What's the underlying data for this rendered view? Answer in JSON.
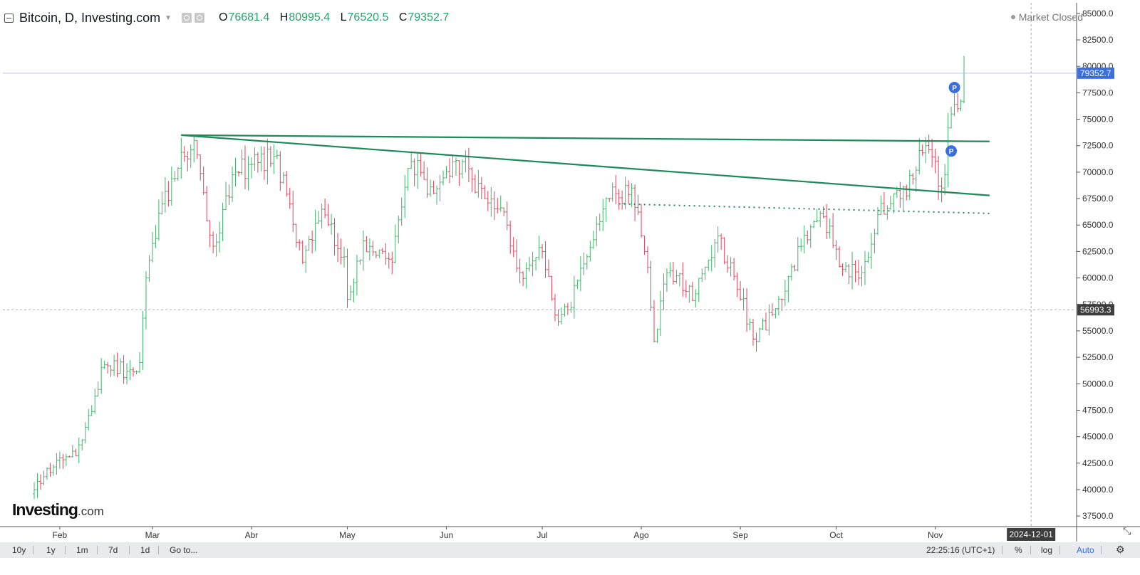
{
  "header": {
    "title": "Bitcoin, D, Investing.com",
    "ohlc": [
      {
        "key": "O",
        "value": "76681.4"
      },
      {
        "key": "H",
        "value": "80995.4"
      },
      {
        "key": "L",
        "value": "76520.5"
      },
      {
        "key": "C",
        "value": "79352.7"
      }
    ],
    "status": "Market Closed"
  },
  "logo": {
    "brand": "Investing",
    "suffix": ".com"
  },
  "toolbar": {
    "ranges": [
      "10y",
      "1y",
      "1m",
      "7d",
      "1d"
    ],
    "goto": "Go to...",
    "time": "22:25:16 (UTC+1)",
    "percent": "%",
    "log": "log",
    "auto": "Auto"
  },
  "colors": {
    "up": "#3fb46a",
    "down": "#e0435a",
    "trend": "#1d8a5b",
    "accent": "#3b6fe0",
    "price_label": "#3b6fe0"
  },
  "chart_data": {
    "type": "ohlc",
    "timeframe": "D",
    "ylim": [
      36500,
      86000
    ],
    "y_ticks": [
      37500,
      40000,
      42500,
      45000,
      47500,
      50000,
      52500,
      55000,
      57500,
      60000,
      62500,
      65000,
      67500,
      70000,
      72500,
      75000,
      77500,
      80000,
      82500,
      85000
    ],
    "x_labels": [
      {
        "label": "Feb",
        "date": "2024-02-01"
      },
      {
        "label": "Mar",
        "date": "2024-03-01"
      },
      {
        "label": "Abr",
        "date": "2024-04-01"
      },
      {
        "label": "May",
        "date": "2024-05-01"
      },
      {
        "label": "Jun",
        "date": "2024-06-01"
      },
      {
        "label": "Jul",
        "date": "2024-07-01"
      },
      {
        "label": "Ago",
        "date": "2024-08-01"
      },
      {
        "label": "Sep",
        "date": "2024-09-01"
      },
      {
        "label": "Oct",
        "date": "2024-10-01"
      },
      {
        "label": "Nov",
        "date": "2024-11-01"
      }
    ],
    "current_price": "79352.7",
    "crosshair_price": "56993.3",
    "crosshair_date": "2024-12-01",
    "price_series": [
      {
        "date": "2024-01-24",
        "close": 40000
      },
      {
        "date": "2024-01-28",
        "close": 42000
      },
      {
        "date": "2024-02-01",
        "close": 43000
      },
      {
        "date": "2024-02-06",
        "close": 43200
      },
      {
        "date": "2024-02-10",
        "close": 47000
      },
      {
        "date": "2024-02-15",
        "close": 51800
      },
      {
        "date": "2024-02-22",
        "close": 51200
      },
      {
        "date": "2024-02-26",
        "close": 52000
      },
      {
        "date": "2024-02-28",
        "close": 60000
      },
      {
        "date": "2024-03-04",
        "close": 67000
      },
      {
        "date": "2024-03-11",
        "close": 71500
      },
      {
        "date": "2024-03-14",
        "close": 73000
      },
      {
        "date": "2024-03-20",
        "close": 63000
      },
      {
        "date": "2024-03-27",
        "close": 70000
      },
      {
        "date": "2024-04-08",
        "close": 71500
      },
      {
        "date": "2024-04-13",
        "close": 67000
      },
      {
        "date": "2024-04-17",
        "close": 61500
      },
      {
        "date": "2024-04-23",
        "close": 66500
      },
      {
        "date": "2024-04-30",
        "close": 62000
      },
      {
        "date": "2024-05-01",
        "close": 58000
      },
      {
        "date": "2024-05-06",
        "close": 63500
      },
      {
        "date": "2024-05-15",
        "close": 61500
      },
      {
        "date": "2024-05-21",
        "close": 71000
      },
      {
        "date": "2024-05-28",
        "close": 68000
      },
      {
        "date": "2024-06-06",
        "close": 71000
      },
      {
        "date": "2024-06-13",
        "close": 67500
      },
      {
        "date": "2024-06-20",
        "close": 65000
      },
      {
        "date": "2024-06-24",
        "close": 60500
      },
      {
        "date": "2024-07-01",
        "close": 62500
      },
      {
        "date": "2024-07-05",
        "close": 56500
      },
      {
        "date": "2024-07-09",
        "close": 57000
      },
      {
        "date": "2024-07-15",
        "close": 62000
      },
      {
        "date": "2024-07-22",
        "close": 67500
      },
      {
        "date": "2024-07-29",
        "close": 68500
      },
      {
        "date": "2024-08-03",
        "close": 61000
      },
      {
        "date": "2024-08-05",
        "close": 54000
      },
      {
        "date": "2024-08-09",
        "close": 60500
      },
      {
        "date": "2024-08-18",
        "close": 58500
      },
      {
        "date": "2024-08-25",
        "close": 64000
      },
      {
        "date": "2024-09-01",
        "close": 58000
      },
      {
        "date": "2024-09-06",
        "close": 54000
      },
      {
        "date": "2024-09-13",
        "close": 58000
      },
      {
        "date": "2024-09-20",
        "close": 63000
      },
      {
        "date": "2024-09-27",
        "close": 65800
      },
      {
        "date": "2024-10-03",
        "close": 60800
      },
      {
        "date": "2024-10-09",
        "close": 60500
      },
      {
        "date": "2024-10-14",
        "close": 66000
      },
      {
        "date": "2024-10-21",
        "close": 67500
      },
      {
        "date": "2024-10-29",
        "close": 72500
      },
      {
        "date": "2024-11-03",
        "close": 68500
      },
      {
        "date": "2024-11-06",
        "close": 75500
      },
      {
        "date": "2024-11-09",
        "close": 76700
      },
      {
        "date": "2024-11-10",
        "close": 79352.7
      }
    ],
    "trendlines": [
      {
        "style": "solid",
        "start": {
          "date": "2024-03-10",
          "value": 73500
        },
        "end": {
          "date": "2024-11-18",
          "value": 72900
        }
      },
      {
        "style": "solid",
        "start": {
          "date": "2024-03-10",
          "value": 73500
        },
        "end": {
          "date": "2024-11-18",
          "value": 67800
        }
      },
      {
        "style": "dotted",
        "start": {
          "date": "2024-07-25",
          "value": 67000
        },
        "end": {
          "date": "2024-11-18",
          "value": 66100
        }
      }
    ],
    "markers": [
      {
        "label": "P",
        "date": "2024-11-06",
        "value": 72000
      },
      {
        "label": "P",
        "date": "2024-11-07",
        "value": 78000
      }
    ]
  }
}
